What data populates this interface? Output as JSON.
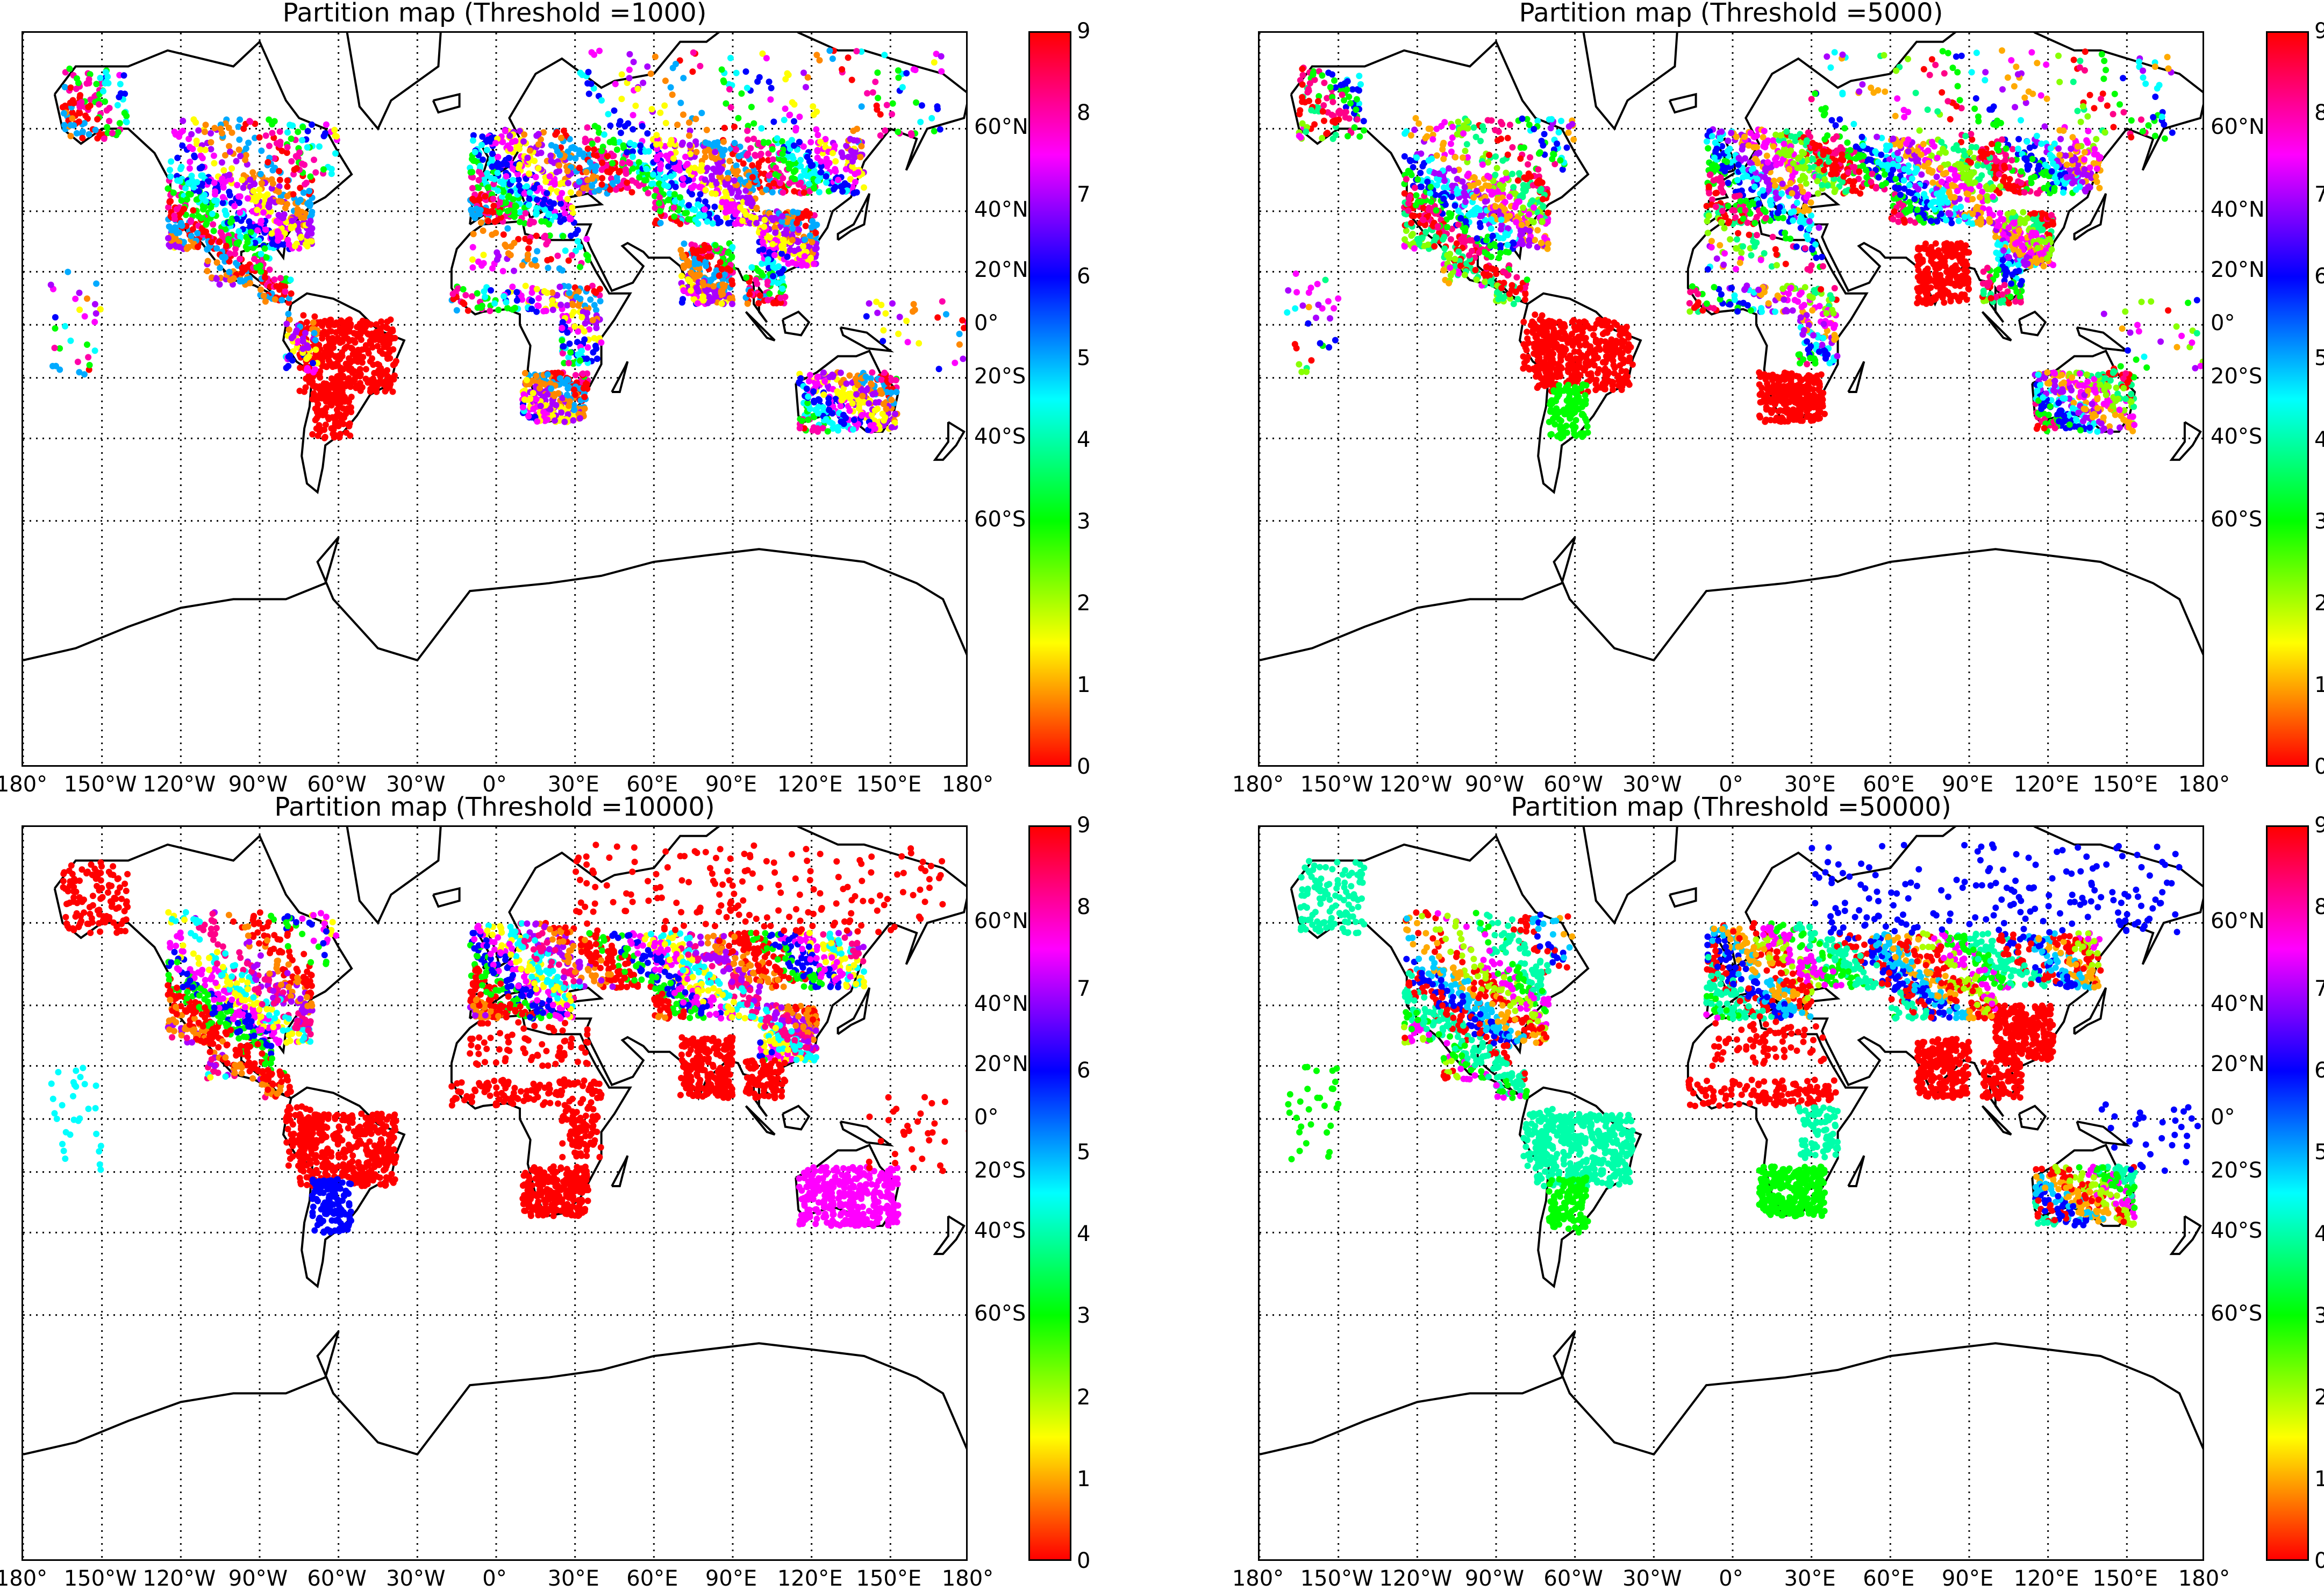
{
  "panels": [
    {
      "title": "Partition map (Threshold =1000)",
      "palette": [
        "#ff0000",
        "#ff00aa",
        "#00ff00",
        "#00ffff",
        "#0000ff",
        "#ff00ff",
        "#ffff00",
        "#aa00ff",
        "#ff8800",
        "#00aaff"
      ]
    },
    {
      "title": "Partition map (Threshold =5000)",
      "palette": [
        "#ff0000",
        "#ff0088",
        "#00ff00",
        "#0000ff",
        "#00ffff",
        "#aa00ff",
        "#ffaa00",
        "#ff00ff",
        "#88ff00",
        "#00ff88"
      ]
    },
    {
      "title": "Partition map (Threshold =10000)",
      "palette": [
        "#ff0000",
        "#ff0000",
        "#00ff00",
        "#0000ff",
        "#ff00ff",
        "#ffff00",
        "#00ffff",
        "#ff0088",
        "#aa00ff",
        "#ff8800"
      ]
    },
    {
      "title": "Partition map (Threshold =50000)",
      "palette": [
        "#00ffaa",
        "#00ffaa",
        "#ff0000",
        "#0000ff",
        "#00ccff",
        "#ffaa00",
        "#ff0000",
        "#aaff00",
        "#ff00ff",
        "#00ff00"
      ]
    }
  ],
  "x_ticks": [
    "180°",
    "150°W",
    "120°W",
    "90°W",
    "60°W",
    "30°W",
    "0°",
    "30°E",
    "60°E",
    "90°E",
    "120°E",
    "150°E",
    "180°"
  ],
  "y_ticks": [
    "60°N",
    "40°N",
    "20°N",
    "0°",
    "20°S",
    "40°S",
    "60°S"
  ],
  "colorbar_ticks": [
    "0",
    "1",
    "2",
    "3",
    "4",
    "5",
    "6",
    "7",
    "8",
    "9"
  ],
  "colors": {
    "gridline": "#000000",
    "coastline": "#000000",
    "colormap": [
      "#ff0000",
      "#ffff00",
      "#00ff00",
      "#00ffff",
      "#0000ff",
      "#ff00ff",
      "#ff0000"
    ]
  }
}
